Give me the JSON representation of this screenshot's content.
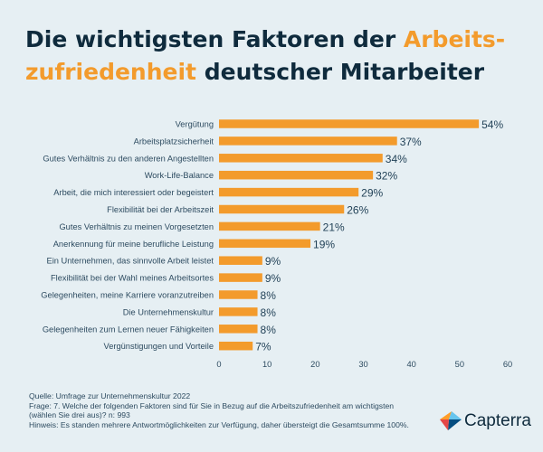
{
  "title": {
    "part1": "Die wichtigsten Faktoren der ",
    "highlight1": "Arbeits-",
    "highlight2": "zufriedenheit",
    "part2": " deutscher Mitarbeiter"
  },
  "chart_data": {
    "type": "bar",
    "orientation": "horizontal",
    "categories": [
      "Vergütung",
      "Arbeitsplatzsicherheit",
      "Gutes Verhältnis zu den anderen Angestellten",
      "Work-Life-Balance",
      "Arbeit, die mich interessiert oder begeistert",
      "Flexibilität bei der Arbeitszeit",
      "Gutes Verhältnis zu meinen Vorgesetzten",
      "Anerkennung für meine berufliche Leistung",
      "Ein Unternehmen, das sinnvolle Arbeit leistet",
      "Flexibilität bei der Wahl meines Arbeitsortes",
      "Gelegenheiten, meine Karriere voranzutreiben",
      "Die Unternehmenskultur",
      "Gelegenheiten zum Lernen neuer Fähigkeiten",
      "Vergünstigungen und Vorteile"
    ],
    "values": [
      54,
      37,
      34,
      32,
      29,
      26,
      21,
      19,
      9,
      9,
      8,
      8,
      8,
      7
    ],
    "value_labels": [
      "54%",
      "37%",
      "34%",
      "32%",
      "29%",
      "26%",
      "21%",
      "19%",
      "9%",
      "9%",
      "8%",
      "8%",
      "8%",
      "7%"
    ],
    "xlim": [
      0,
      60
    ],
    "xticks": [
      "0",
      "10",
      "20",
      "30",
      "40",
      "50",
      "60"
    ],
    "grid": false,
    "bar_color": "#f39b2c"
  },
  "footer": {
    "source": "Quelle: Umfrage zur Unternehmenskultur 2022",
    "question": "Frage: 7. Welche der folgenden Faktoren sind für Sie in Bezug auf die Arbeitszufriedenheit am wichtigsten (wählen Sie drei aus)? n: 993",
    "note": "Hinweis: Es standen mehrere Antwortmöglichkeiten zur Verfügung, daher übersteigt die Gesamtsumme 100%."
  },
  "logo": {
    "text": "Capterra",
    "icon": "capterra-logo-icon"
  }
}
